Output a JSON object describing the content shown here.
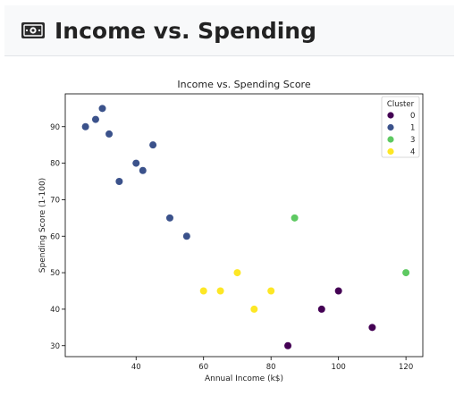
{
  "header": {
    "title": "Income vs. Spending",
    "icon": "money-bill-icon"
  },
  "chart_data": {
    "type": "scatter",
    "title": "Income vs. Spending Score",
    "xlabel": "Annual Income (k$)",
    "ylabel": "Spending Score (1-100)",
    "xlim": [
      19,
      125
    ],
    "ylim": [
      27,
      99
    ],
    "xticks": [
      40,
      60,
      80,
      100,
      120
    ],
    "yticks": [
      30,
      40,
      50,
      60,
      70,
      80,
      90
    ],
    "grid": false,
    "legend": {
      "title": "Cluster",
      "placement": "top-right"
    },
    "series": [
      {
        "name": "0",
        "color": "#440154",
        "points": [
          [
            85,
            30
          ],
          [
            95,
            40
          ],
          [
            100,
            45
          ],
          [
            110,
            35
          ]
        ]
      },
      {
        "name": "1",
        "color": "#3b528b",
        "points": [
          [
            25,
            90
          ],
          [
            28,
            92
          ],
          [
            30,
            95
          ],
          [
            32,
            88
          ],
          [
            35,
            75
          ],
          [
            40,
            80
          ],
          [
            42,
            78
          ],
          [
            45,
            85
          ],
          [
            50,
            65
          ],
          [
            55,
            60
          ]
        ]
      },
      {
        "name": "3",
        "color": "#5ec962",
        "points": [
          [
            87,
            65
          ],
          [
            120,
            50
          ]
        ]
      },
      {
        "name": "4",
        "color": "#fde725",
        "points": [
          [
            60,
            45
          ],
          [
            65,
            45
          ],
          [
            70,
            50
          ],
          [
            75,
            40
          ],
          [
            80,
            45
          ]
        ]
      }
    ]
  }
}
